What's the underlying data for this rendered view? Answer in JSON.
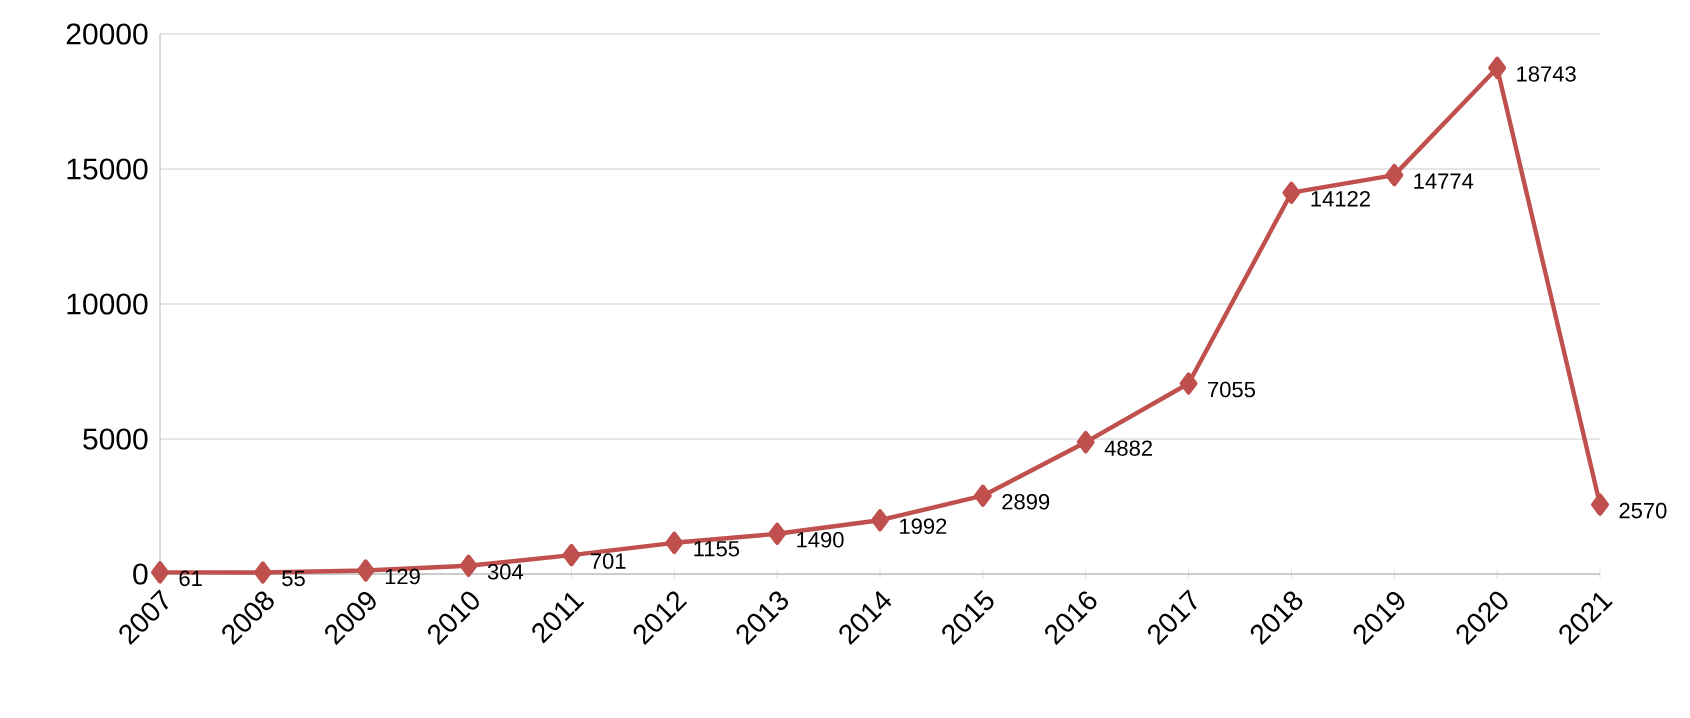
{
  "chart_data": {
    "type": "line",
    "categories": [
      "2007",
      "2008",
      "2009",
      "2010",
      "2011",
      "2012",
      "2013",
      "2014",
      "2015",
      "2016",
      "2017",
      "2018",
      "2019",
      "2020",
      "2021"
    ],
    "values": [
      61,
      55,
      129,
      304,
      701,
      1155,
      1490,
      1992,
      2899,
      4882,
      7055,
      14122,
      14774,
      18743,
      2570
    ],
    "color": "#c0504d",
    "marker": "diamond",
    "line_style": "solid",
    "data_labels": true,
    "grid": "y",
    "ylim": [
      0,
      20000
    ],
    "yticks": [
      0,
      5000,
      10000,
      15000,
      20000
    ]
  }
}
